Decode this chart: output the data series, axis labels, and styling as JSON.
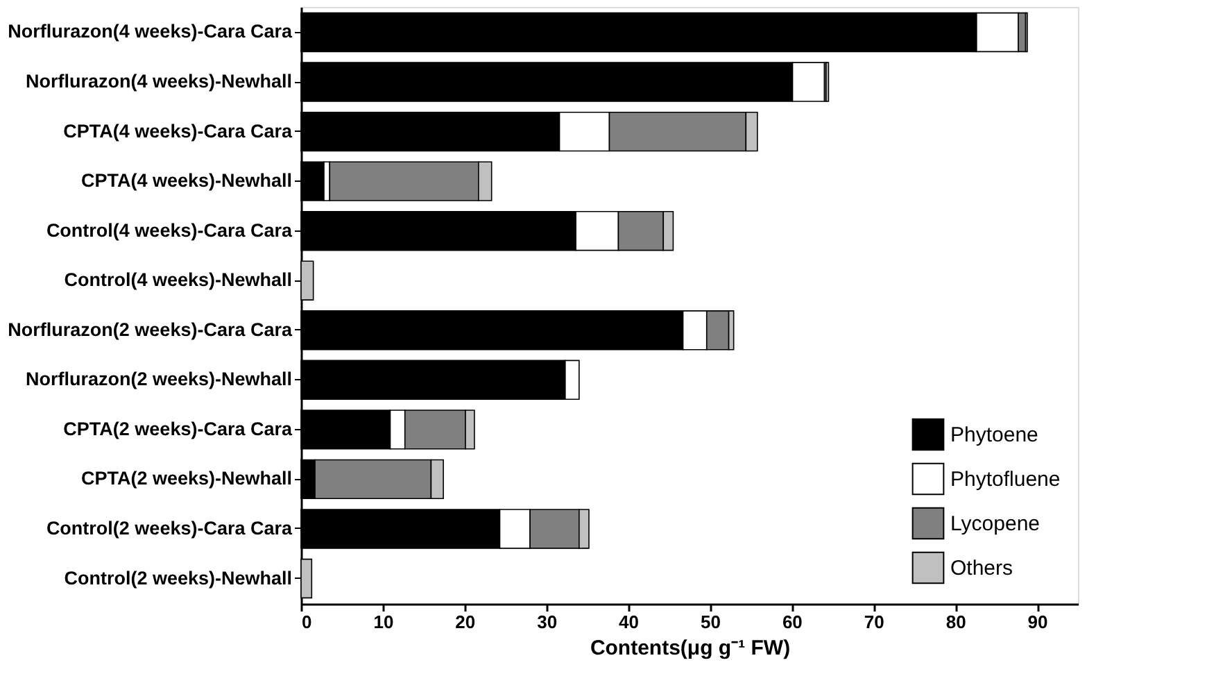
{
  "chart_data": {
    "type": "bar",
    "orientation": "horizontal",
    "stacked": true,
    "xlabel": "Contents(μg g⁻¹ FW)",
    "categories": [
      "Norflurazon(4 weeks)-Cara Cara",
      "Norflurazon(4 weeks)-Newhall",
      "CPTA(4 weeks)-Cara Cara",
      "CPTA(4 weeks)-Newhall",
      "Control(4 weeks)-Cara Cara",
      "Control(4 weeks)-Newhall",
      "Norflurazon(2 weeks)-Cara Cara",
      "Norflurazon(2 weeks)-Newhall",
      "CPTA(2 weeks)-Cara Cara",
      "CPTA(2 weeks)-Newhall",
      "Control(2 weeks)-Cara Cara",
      "Control(2 weeks)-Newhall"
    ],
    "series": [
      {
        "name": "Phytoene",
        "color": "#000000",
        "values": [
          82.6,
          60.1,
          31.6,
          2.8,
          33.6,
          0,
          46.7,
          32.3,
          10.9,
          1.7,
          24.3,
          0
        ]
      },
      {
        "name": "Phytofluene",
        "color": "#ffffff",
        "values": [
          5.1,
          3.9,
          6.1,
          0.7,
          5.2,
          0,
          2.9,
          1.7,
          1.8,
          null,
          3.7,
          0
        ]
      },
      {
        "name": "Lycopene",
        "color": "#808080",
        "values": [
          0.9,
          0.2,
          16.7,
          18.2,
          5.5,
          0,
          2.7,
          0,
          7.4,
          14.2,
          6.0,
          0
        ]
      },
      {
        "name": "Others",
        "color": "#c0c0c0",
        "values": [
          0.2,
          0.3,
          1.4,
          1.6,
          1.2,
          1.5,
          0.6,
          0,
          1.1,
          1.5,
          1.2,
          1.3
        ]
      }
    ],
    "xlim": [
      0,
      95
    ],
    "xticks": [
      0,
      10,
      20,
      30,
      40,
      50,
      60,
      70,
      80,
      90
    ],
    "grid": false,
    "legend": "bottom right"
  }
}
